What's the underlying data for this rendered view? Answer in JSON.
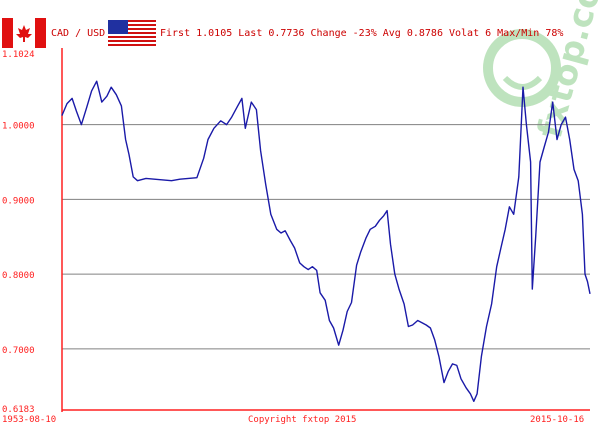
{
  "header": {
    "pair": "CAD / USD",
    "stats": "First 1.0105 Last 0.7736 Change -23% Avg 0.8786 Volat 6 Max/Min 78%",
    "base_flag": "canada-flag",
    "quote_flag": "usa-flag"
  },
  "watermark": {
    "text": "fxtop.com"
  },
  "colors": {
    "line": "#1a1aa8",
    "axis": "#ff2020",
    "grid": "#808080",
    "header_text": "#cc0000",
    "watermark": "#b8e0b8"
  },
  "chart_data": {
    "type": "line",
    "title": "CAD / USD",
    "xlabel": "",
    "ylabel": "",
    "ylim": [
      0.6183,
      1.1024
    ],
    "grid": true,
    "x_tick_labels": [
      "1953-08-10",
      "2015-10-16"
    ],
    "footer": "Copyright fxtop 2015",
    "y_ticks": [
      "1.1024",
      "1.0000",
      "0.9000",
      "0.8000",
      "0.7000",
      "0.6183"
    ],
    "y_values": [
      1.1024,
      1.0,
      0.9,
      0.8,
      0.7,
      0.6183
    ],
    "x_range": [
      1953.61,
      2015.79
    ],
    "series": [
      {
        "points": [
          [
            1953.6,
            1.012
          ],
          [
            1954.2,
            1.028
          ],
          [
            1954.8,
            1.035
          ],
          [
            1955.3,
            1.018
          ],
          [
            1955.9,
            1.0
          ],
          [
            1956.5,
            1.022
          ],
          [
            1957.1,
            1.045
          ],
          [
            1957.7,
            1.058
          ],
          [
            1958.3,
            1.03
          ],
          [
            1958.9,
            1.038
          ],
          [
            1959.4,
            1.05
          ],
          [
            1960.0,
            1.04
          ],
          [
            1960.6,
            1.025
          ],
          [
            1961.1,
            0.98
          ],
          [
            1961.5,
            0.96
          ],
          [
            1962.0,
            0.93
          ],
          [
            1962.5,
            0.925
          ],
          [
            1963.5,
            0.928
          ],
          [
            1964.5,
            0.927
          ],
          [
            1965.5,
            0.926
          ],
          [
            1966.5,
            0.925
          ],
          [
            1967.5,
            0.927
          ],
          [
            1968.5,
            0.928
          ],
          [
            1969.5,
            0.929
          ],
          [
            1970.3,
            0.955
          ],
          [
            1970.8,
            0.98
          ],
          [
            1971.5,
            0.995
          ],
          [
            1972.3,
            1.005
          ],
          [
            1973.0,
            1.0
          ],
          [
            1973.6,
            1.01
          ],
          [
            1974.3,
            1.025
          ],
          [
            1974.8,
            1.035
          ],
          [
            1975.2,
            0.995
          ],
          [
            1975.9,
            1.03
          ],
          [
            1976.5,
            1.02
          ],
          [
            1977.0,
            0.965
          ],
          [
            1977.6,
            0.92
          ],
          [
            1978.2,
            0.88
          ],
          [
            1978.9,
            0.86
          ],
          [
            1979.4,
            0.855
          ],
          [
            1979.9,
            0.858
          ],
          [
            1980.5,
            0.845
          ],
          [
            1981.0,
            0.835
          ],
          [
            1981.6,
            0.815
          ],
          [
            1982.1,
            0.81
          ],
          [
            1982.6,
            0.806
          ],
          [
            1983.1,
            0.81
          ],
          [
            1983.6,
            0.805
          ],
          [
            1984.0,
            0.775
          ],
          [
            1984.6,
            0.765
          ],
          [
            1985.1,
            0.738
          ],
          [
            1985.6,
            0.728
          ],
          [
            1986.2,
            0.705
          ],
          [
            1986.7,
            0.725
          ],
          [
            1987.2,
            0.75
          ],
          [
            1987.7,
            0.762
          ],
          [
            1988.3,
            0.812
          ],
          [
            1988.8,
            0.83
          ],
          [
            1989.4,
            0.848
          ],
          [
            1989.9,
            0.86
          ],
          [
            1990.5,
            0.864
          ],
          [
            1991.0,
            0.872
          ],
          [
            1991.5,
            0.878
          ],
          [
            1991.9,
            0.885
          ],
          [
            1992.3,
            0.84
          ],
          [
            1992.8,
            0.8
          ],
          [
            1993.3,
            0.78
          ],
          [
            1993.9,
            0.76
          ],
          [
            1994.4,
            0.73
          ],
          [
            1994.9,
            0.732
          ],
          [
            1995.5,
            0.738
          ],
          [
            1996.0,
            0.735
          ],
          [
            1996.5,
            0.732
          ],
          [
            1997.0,
            0.728
          ],
          [
            1997.5,
            0.712
          ],
          [
            1998.0,
            0.69
          ],
          [
            1998.6,
            0.655
          ],
          [
            1999.1,
            0.67
          ],
          [
            1999.6,
            0.68
          ],
          [
            2000.1,
            0.678
          ],
          [
            2000.6,
            0.66
          ],
          [
            2001.2,
            0.648
          ],
          [
            2001.7,
            0.64
          ],
          [
            2002.1,
            0.63
          ],
          [
            2002.5,
            0.64
          ],
          [
            2003.0,
            0.69
          ],
          [
            2003.6,
            0.73
          ],
          [
            2004.2,
            0.76
          ],
          [
            2004.8,
            0.81
          ],
          [
            2005.3,
            0.835
          ],
          [
            2005.8,
            0.86
          ],
          [
            2006.3,
            0.89
          ],
          [
            2006.8,
            0.88
          ],
          [
            2007.4,
            0.93
          ],
          [
            2007.9,
            1.05
          ],
          [
            2008.3,
            1.0
          ],
          [
            2008.8,
            0.95
          ],
          [
            2009.0,
            0.78
          ],
          [
            2009.4,
            0.85
          ],
          [
            2009.9,
            0.95
          ],
          [
            2010.4,
            0.97
          ],
          [
            2010.9,
            0.99
          ],
          [
            2011.4,
            1.03
          ],
          [
            2011.9,
            0.98
          ],
          [
            2012.4,
            1.0
          ],
          [
            2012.9,
            1.01
          ],
          [
            2013.4,
            0.98
          ],
          [
            2013.9,
            0.94
          ],
          [
            2014.4,
            0.925
          ],
          [
            2014.9,
            0.88
          ],
          [
            2015.2,
            0.8
          ],
          [
            2015.5,
            0.79
          ],
          [
            2015.79,
            0.7736
          ]
        ]
      }
    ]
  }
}
